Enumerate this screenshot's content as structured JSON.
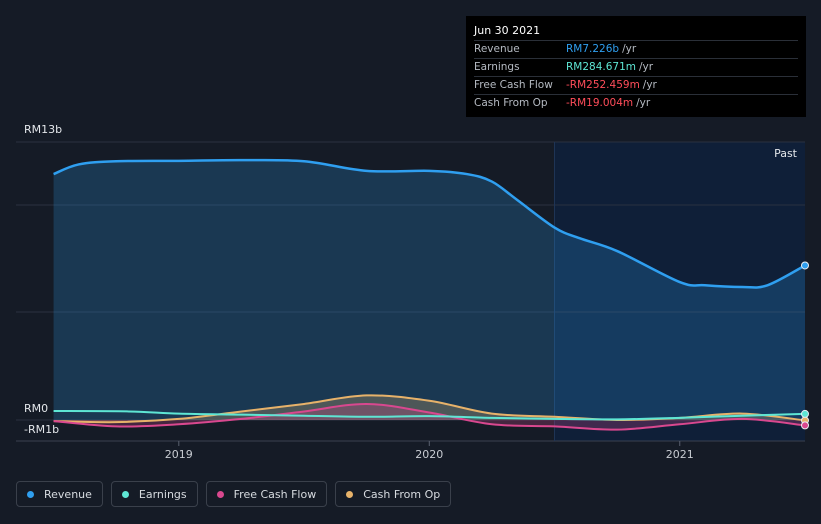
{
  "tooltip": {
    "date": "Jun 30 2021",
    "rows": [
      {
        "label": "Revenue",
        "value": "RM7.226b",
        "unit": "/yr",
        "color": "#2f9ff0"
      },
      {
        "label": "Earnings",
        "value": "RM284.671m",
        "unit": "/yr",
        "color": "#5ee6d4"
      },
      {
        "label": "Free Cash Flow",
        "value": "-RM252.459m",
        "unit": "/yr",
        "color": "#ff4d5a"
      },
      {
        "label": "Cash From Op",
        "value": "-RM19.004m",
        "unit": "/yr",
        "color": "#ff4d5a"
      }
    ]
  },
  "legend": [
    {
      "label": "Revenue",
      "color": "#2f9ff0"
    },
    {
      "label": "Earnings",
      "color": "#5ee6d4"
    },
    {
      "label": "Free Cash Flow",
      "color": "#d9488f"
    },
    {
      "label": "Cash From Op",
      "color": "#e7b26a"
    }
  ],
  "chart_data": {
    "type": "area",
    "past_label": "Past",
    "y_labels": [
      "RM13b",
      "RM0",
      "-RM1b"
    ],
    "ylim": [
      -1,
      13
    ],
    "x_ticks": [
      {
        "label": "2019",
        "x": 2019.0
      },
      {
        "label": "2020",
        "x": 2020.0
      },
      {
        "label": "2021",
        "x": 2021.0
      }
    ],
    "past_start": 2020.5,
    "series": [
      {
        "name": "Revenue",
        "color": "#2f9ff0",
        "fill": true,
        "points": [
          [
            2018.5,
            11.5
          ],
          [
            2018.6,
            11.95
          ],
          [
            2018.75,
            12.1
          ],
          [
            2019.0,
            12.12
          ],
          [
            2019.25,
            12.15
          ],
          [
            2019.5,
            12.1
          ],
          [
            2019.75,
            11.65
          ],
          [
            2020.0,
            11.65
          ],
          [
            2020.15,
            11.5
          ],
          [
            2020.25,
            11.15
          ],
          [
            2020.35,
            10.3
          ],
          [
            2020.5,
            9.0
          ],
          [
            2020.6,
            8.5
          ],
          [
            2020.75,
            7.9
          ],
          [
            2021.0,
            6.45
          ],
          [
            2021.1,
            6.3
          ],
          [
            2021.25,
            6.22
          ],
          [
            2021.35,
            6.3
          ],
          [
            2021.5,
            7.226
          ]
        ]
      },
      {
        "name": "Earnings",
        "color": "#5ee6d4",
        "fill": false,
        "points": [
          [
            2018.5,
            0.42
          ],
          [
            2018.8,
            0.4
          ],
          [
            2019.0,
            0.3
          ],
          [
            2019.25,
            0.25
          ],
          [
            2019.5,
            0.2
          ],
          [
            2019.75,
            0.15
          ],
          [
            2020.0,
            0.18
          ],
          [
            2020.25,
            0.1
          ],
          [
            2020.5,
            0.05
          ],
          [
            2020.75,
            0.03
          ],
          [
            2021.0,
            0.1
          ],
          [
            2021.25,
            0.2
          ],
          [
            2021.5,
            0.285
          ]
        ]
      },
      {
        "name": "Free Cash Flow",
        "color": "#d9488f",
        "fill": true,
        "points": [
          [
            2018.5,
            -0.05
          ],
          [
            2018.75,
            -0.3
          ],
          [
            2019.0,
            -0.2
          ],
          [
            2019.25,
            0.05
          ],
          [
            2019.5,
            0.4
          ],
          [
            2019.75,
            0.75
          ],
          [
            2020.0,
            0.35
          ],
          [
            2020.25,
            -0.2
          ],
          [
            2020.5,
            -0.3
          ],
          [
            2020.75,
            -0.45
          ],
          [
            2021.0,
            -0.2
          ],
          [
            2021.25,
            0.05
          ],
          [
            2021.5,
            -0.252
          ]
        ]
      },
      {
        "name": "Cash From Op",
        "color": "#e7b26a",
        "fill": true,
        "points": [
          [
            2018.5,
            -0.05
          ],
          [
            2018.75,
            -0.1
          ],
          [
            2019.0,
            0.05
          ],
          [
            2019.25,
            0.4
          ],
          [
            2019.5,
            0.75
          ],
          [
            2019.75,
            1.15
          ],
          [
            2020.0,
            0.9
          ],
          [
            2020.25,
            0.3
          ],
          [
            2020.5,
            0.15
          ],
          [
            2020.75,
            0.0
          ],
          [
            2021.0,
            0.1
          ],
          [
            2021.25,
            0.3
          ],
          [
            2021.5,
            -0.019
          ]
        ]
      }
    ]
  }
}
